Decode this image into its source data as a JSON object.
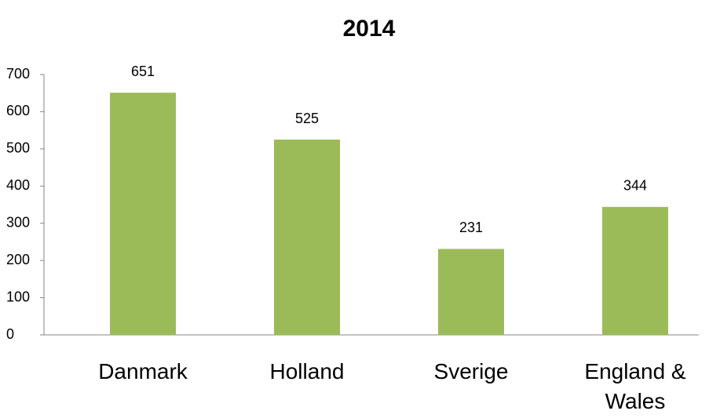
{
  "chart_data": {
    "type": "bar",
    "title": "2014",
    "categories": [
      "Danmark",
      "Holland",
      "Sverige",
      "England & Wales"
    ],
    "values": [
      651,
      525,
      231,
      344
    ],
    "color": "#9bbb59",
    "ylim": [
      0,
      700
    ],
    "yticks": [
      0,
      100,
      200,
      300,
      400,
      500,
      600,
      700
    ],
    "grid": false
  }
}
